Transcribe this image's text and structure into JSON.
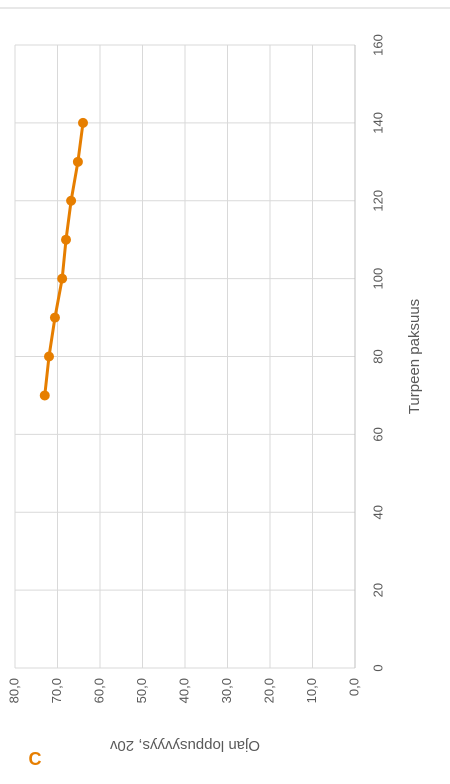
{
  "chart_data": {
    "type": "line",
    "panel_label": "C",
    "x_label": "Turpeen paksuus",
    "y_label": "Ojan loppusyvyys, 20v",
    "x": [
      70,
      80,
      90,
      100,
      110,
      120,
      130,
      140
    ],
    "series": [
      {
        "name": "Ojan loppusyvyys, 20v",
        "color": "#e67e00",
        "values": [
          73,
          72,
          70.6,
          68.9,
          68,
          66.8,
          65.2,
          64
        ]
      }
    ],
    "xlim": [
      0,
      160
    ],
    "xticks": [
      0,
      20,
      40,
      60,
      80,
      100,
      120,
      140,
      160
    ],
    "ylim": [
      0,
      80
    ],
    "yticks": [
      {
        "value": 0,
        "label": "0,0"
      },
      {
        "value": 10,
        "label": "10,0"
      },
      {
        "value": 20,
        "label": "20,0"
      },
      {
        "value": 30,
        "label": "30,0"
      },
      {
        "value": 40,
        "label": "40,0"
      },
      {
        "value": 50,
        "label": "50,0"
      },
      {
        "value": 60,
        "label": "60,0"
      },
      {
        "value": 70,
        "label": "70,0"
      },
      {
        "value": 80,
        "label": "80,0"
      }
    ],
    "grid": true,
    "rotation": -90
  }
}
